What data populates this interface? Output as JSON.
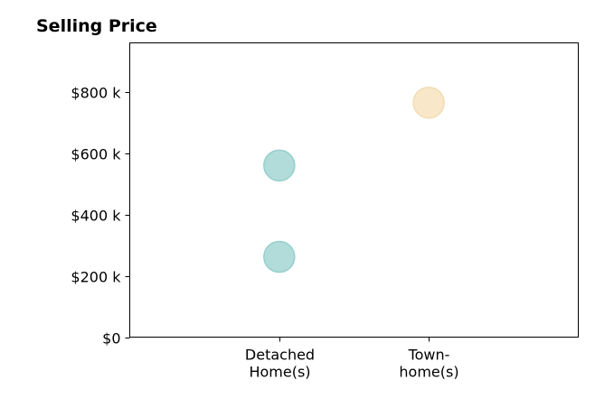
{
  "chart_data": {
    "type": "scatter",
    "title": "Selling Price",
    "xlabel": "",
    "ylabel": "",
    "categories": [
      {
        "lines": [
          "Detached",
          "Home(s)"
        ]
      },
      {
        "lines": [
          "Town-",
          "home(s)"
        ]
      }
    ],
    "y_ticks": [
      {
        "value": 0,
        "label": "$0"
      },
      {
        "value": 200000,
        "label": "$200 k"
      },
      {
        "value": 400000,
        "label": "$400 k"
      },
      {
        "value": 600000,
        "label": "$600 k"
      },
      {
        "value": 800000,
        "label": "$800 k"
      }
    ],
    "ylim": [
      0,
      960000
    ],
    "xlim": [
      -1,
      2
    ],
    "grid": false,
    "points": [
      {
        "category_index": 0,
        "y": 560000,
        "color": "#b2dcda"
      },
      {
        "category_index": 0,
        "y": 262000,
        "color": "#b2dcda"
      },
      {
        "category_index": 1,
        "y": 765000,
        "color": "#f8e8c9"
      }
    ],
    "point_stroke_colors": {
      "0": "#95cfcc",
      "1": "#f1dcb4"
    }
  }
}
